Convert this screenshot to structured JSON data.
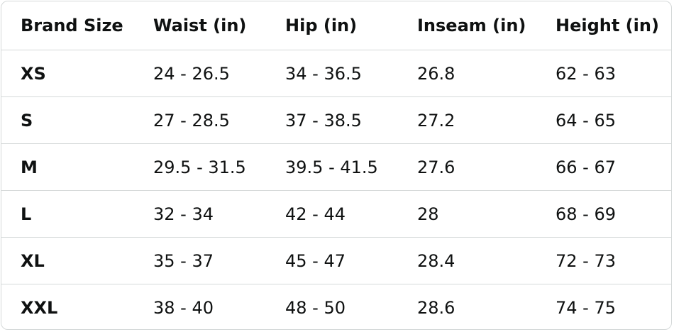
{
  "table": {
    "header": [
      "Brand Size",
      "Waist (in)",
      "Hip (in)",
      "Inseam (in)",
      "Height (in)"
    ],
    "rows": [
      [
        "XS",
        "24 - 26.5",
        "34 - 36.5",
        "26.8",
        "62 - 63"
      ],
      [
        "S",
        "27 - 28.5",
        "37 - 38.5",
        "27.2",
        "64 - 65"
      ],
      [
        "M",
        "29.5 - 31.5",
        "39.5 - 41.5",
        "27.6",
        "66 - 67"
      ],
      [
        "L",
        "32 - 34",
        "42 - 44",
        "28",
        "68 - 69"
      ],
      [
        "XL",
        "35 - 37",
        "45 - 47",
        "28.4",
        "72 - 73"
      ],
      [
        "XXL",
        "38 - 40",
        "48 - 50",
        "28.6",
        "74 - 75"
      ]
    ]
  }
}
